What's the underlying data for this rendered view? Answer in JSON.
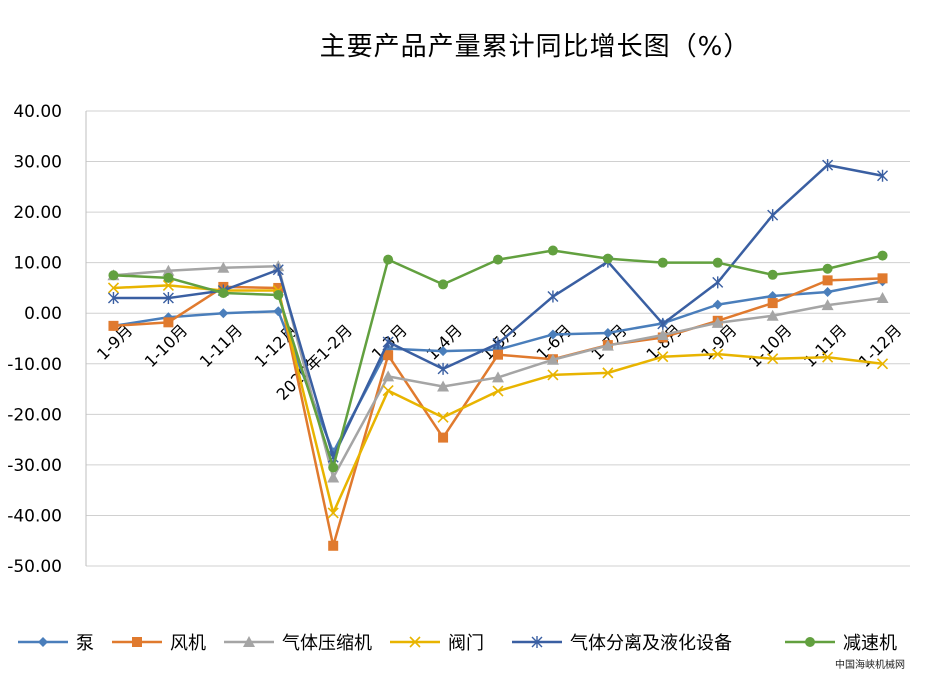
{
  "chart_data": {
    "type": "line",
    "title": "主要产品产量累计同比增长图（%）",
    "xlabel": "",
    "ylabel": "",
    "ylim": [
      -50,
      40
    ],
    "yticks": [
      "40.00",
      "30.00",
      "20.00",
      "10.00",
      "0.00",
      "-10.00",
      "-20.00",
      "-30.00",
      "-40.00",
      "-50.00"
    ],
    "grid": true,
    "legend_position": "bottom",
    "categories": [
      "1-9月",
      "1-10月",
      "1-11月",
      "1-12月",
      "2020年1-2月",
      "1-3月",
      "1-4月",
      "1-5月",
      "1-6月",
      "1-7月",
      "1-8月",
      "1-9月",
      "1-10月",
      "1-11月",
      "1-12月"
    ],
    "series": [
      {
        "name": "泵",
        "color": "#4a7ebb",
        "marker": "diamond",
        "values": [
          -2.5,
          -0.8,
          0,
          0.4,
          -27.5,
          -7,
          -7.5,
          -7.2,
          -4.2,
          -3.9,
          -2,
          1.7,
          3.4,
          4.2,
          6.3
        ]
      },
      {
        "name": "风机",
        "color": "#e07a2e",
        "marker": "square",
        "values": [
          -2.5,
          -1.8,
          5.2,
          5,
          -46,
          -8.3,
          -24.6,
          -8.2,
          -9.1,
          -6.3,
          -4.8,
          -1.5,
          2,
          6.5,
          6.9
        ]
      },
      {
        "name": "气体压缩机",
        "color": "#a5a5a5",
        "marker": "triangle",
        "values": [
          7.5,
          8.4,
          9,
          9.3,
          -32.5,
          -12.5,
          -14.5,
          -12.7,
          -9.2,
          -6.4,
          -4.3,
          -1.9,
          -0.5,
          1.6,
          3
        ]
      },
      {
        "name": "阀门",
        "color": "#e8b400",
        "marker": "x",
        "values": [
          5,
          5.5,
          4.5,
          4.5,
          -39.5,
          -15.3,
          -20.6,
          -15.4,
          -12.2,
          -11.8,
          -8.6,
          -8.1,
          -9,
          -8.7,
          -10
        ]
      },
      {
        "name": "气体分离及液化设备",
        "color": "#3a5fa2",
        "marker": "star",
        "values": [
          3,
          3,
          4.5,
          8.6,
          -28.5,
          -5.7,
          -11,
          -6,
          3.3,
          10.2,
          -2.1,
          6.1,
          19.4,
          29.3,
          27.2
        ]
      },
      {
        "name": "减速机",
        "color": "#62a03f",
        "marker": "circle",
        "values": [
          7.5,
          7,
          4,
          3.6,
          -30.5,
          10.6,
          5.7,
          10.6,
          12.4,
          10.8,
          10,
          10,
          7.6,
          8.8,
          11.4
        ]
      }
    ]
  },
  "source_text": "中国海峡机械网"
}
